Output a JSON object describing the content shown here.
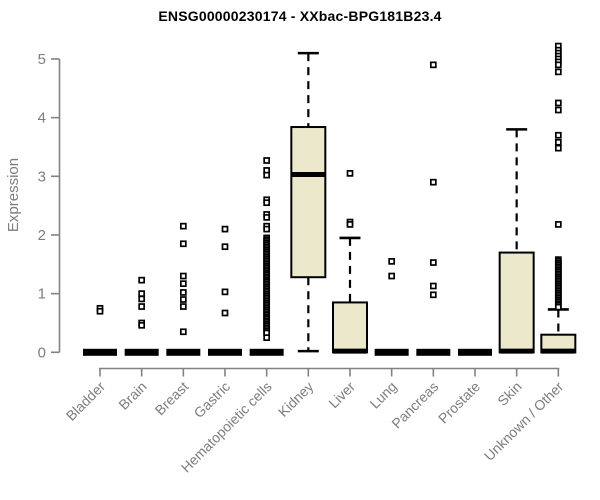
{
  "chart_data": {
    "type": "boxplot",
    "title": "ENSG00000230174 - XXbac-BPG181B23.4",
    "ylabel": "Expression",
    "xlabel": "",
    "ylim": [
      0,
      5.35
    ],
    "yticks": [
      0,
      1,
      2,
      3,
      4,
      5
    ],
    "grid": false,
    "legend": "none",
    "colors": {
      "box_fill": "#ece8cc",
      "box_border": "#000000",
      "median": "#000000",
      "axis": "#828282",
      "tick_label": "#7d7d7d",
      "title": "#000000",
      "outlier": "#000000"
    },
    "categories": [
      {
        "label": "Bladder",
        "q1": 0,
        "median": 0,
        "q3": 0,
        "whisker_low": 0,
        "whisker_high": 0,
        "outliers": [
          0.75,
          0.7
        ]
      },
      {
        "label": "Brain",
        "q1": 0,
        "median": 0,
        "q3": 0,
        "whisker_low": 0,
        "whisker_high": 0,
        "outliers": [
          1.23,
          1.0,
          0.91,
          0.78,
          0.5,
          0.46
        ]
      },
      {
        "label": "Breast",
        "q1": 0,
        "median": 0,
        "q3": 0,
        "whisker_low": 0,
        "whisker_high": 0,
        "outliers": [
          2.15,
          1.85,
          1.3,
          1.17,
          1.02,
          0.9,
          0.78,
          0.35
        ]
      },
      {
        "label": "Gastric",
        "q1": 0,
        "median": 0,
        "q3": 0,
        "whisker_low": 0,
        "whisker_high": 0,
        "outliers": [
          2.1,
          1.8,
          1.03,
          0.67
        ]
      },
      {
        "label": "Hematopoietic cells",
        "q1": 0,
        "median": 0,
        "q3": 0,
        "whisker_low": 0,
        "whisker_high": 0,
        "outliers": [
          3.27,
          3.1,
          3.02,
          2.6,
          2.55,
          2.35,
          2.3,
          2.15,
          2.1,
          1.95,
          1.92,
          1.89,
          1.86,
          1.83,
          1.8,
          1.77,
          1.74,
          1.71,
          1.68,
          1.65,
          1.62,
          1.59,
          1.56,
          1.53,
          1.5,
          1.47,
          1.44,
          1.41,
          1.38,
          1.35,
          1.32,
          1.29,
          1.26,
          1.23,
          1.2,
          1.17,
          1.14,
          1.11,
          1.08,
          1.05,
          1.02,
          0.99,
          0.96,
          0.93,
          0.9,
          0.87,
          0.84,
          0.81,
          0.78,
          0.75,
          0.72,
          0.69,
          0.66,
          0.63,
          0.6,
          0.57,
          0.54,
          0.51,
          0.48,
          0.45,
          0.42,
          0.39,
          0.36,
          0.33,
          0.25
        ]
      },
      {
        "label": "Kidney",
        "q1": 1.28,
        "median": 3.03,
        "q3": 3.84,
        "whisker_low": 0.02,
        "whisker_high": 5.1,
        "outliers": []
      },
      {
        "label": "Liver",
        "q1": 0,
        "median": 0.02,
        "q3": 0.85,
        "whisker_low": 0,
        "whisker_high": 1.95,
        "outliers": [
          3.05,
          2.22,
          2.18
        ]
      },
      {
        "label": "Lung",
        "q1": 0,
        "median": 0,
        "q3": 0,
        "whisker_low": 0,
        "whisker_high": 0,
        "outliers": [
          1.55,
          1.3
        ]
      },
      {
        "label": "Pancreas",
        "q1": 0,
        "median": 0,
        "q3": 0,
        "whisker_low": 0,
        "whisker_high": 0,
        "outliers": [
          4.9,
          2.9,
          1.53,
          1.13,
          0.98
        ]
      },
      {
        "label": "Prostate",
        "q1": 0,
        "median": 0,
        "q3": 0,
        "whisker_low": 0,
        "whisker_high": 0,
        "outliers": []
      },
      {
        "label": "Skin",
        "q1": 0,
        "median": 0.02,
        "q3": 1.7,
        "whisker_low": 0,
        "whisker_high": 3.8,
        "outliers": []
      },
      {
        "label": "Unknown / Other",
        "q1": 0,
        "median": 0.02,
        "q3": 0.3,
        "whisker_low": 0,
        "whisker_high": 0.73,
        "outliers": [
          5.22,
          5.15,
          5.1,
          5.05,
          5.0,
          4.95,
          4.9,
          4.78,
          4.25,
          4.13,
          3.7,
          3.58,
          3.48,
          2.18,
          1.58,
          1.55,
          1.52,
          1.49,
          1.46,
          1.43,
          1.4,
          1.37,
          1.34,
          1.31,
          1.28,
          1.25,
          1.22,
          1.19,
          1.16,
          1.13,
          1.1,
          1.07,
          1.04,
          1.01,
          0.98,
          0.95,
          0.92,
          0.89,
          0.86,
          0.83,
          0.8,
          0.77
        ]
      }
    ]
  }
}
